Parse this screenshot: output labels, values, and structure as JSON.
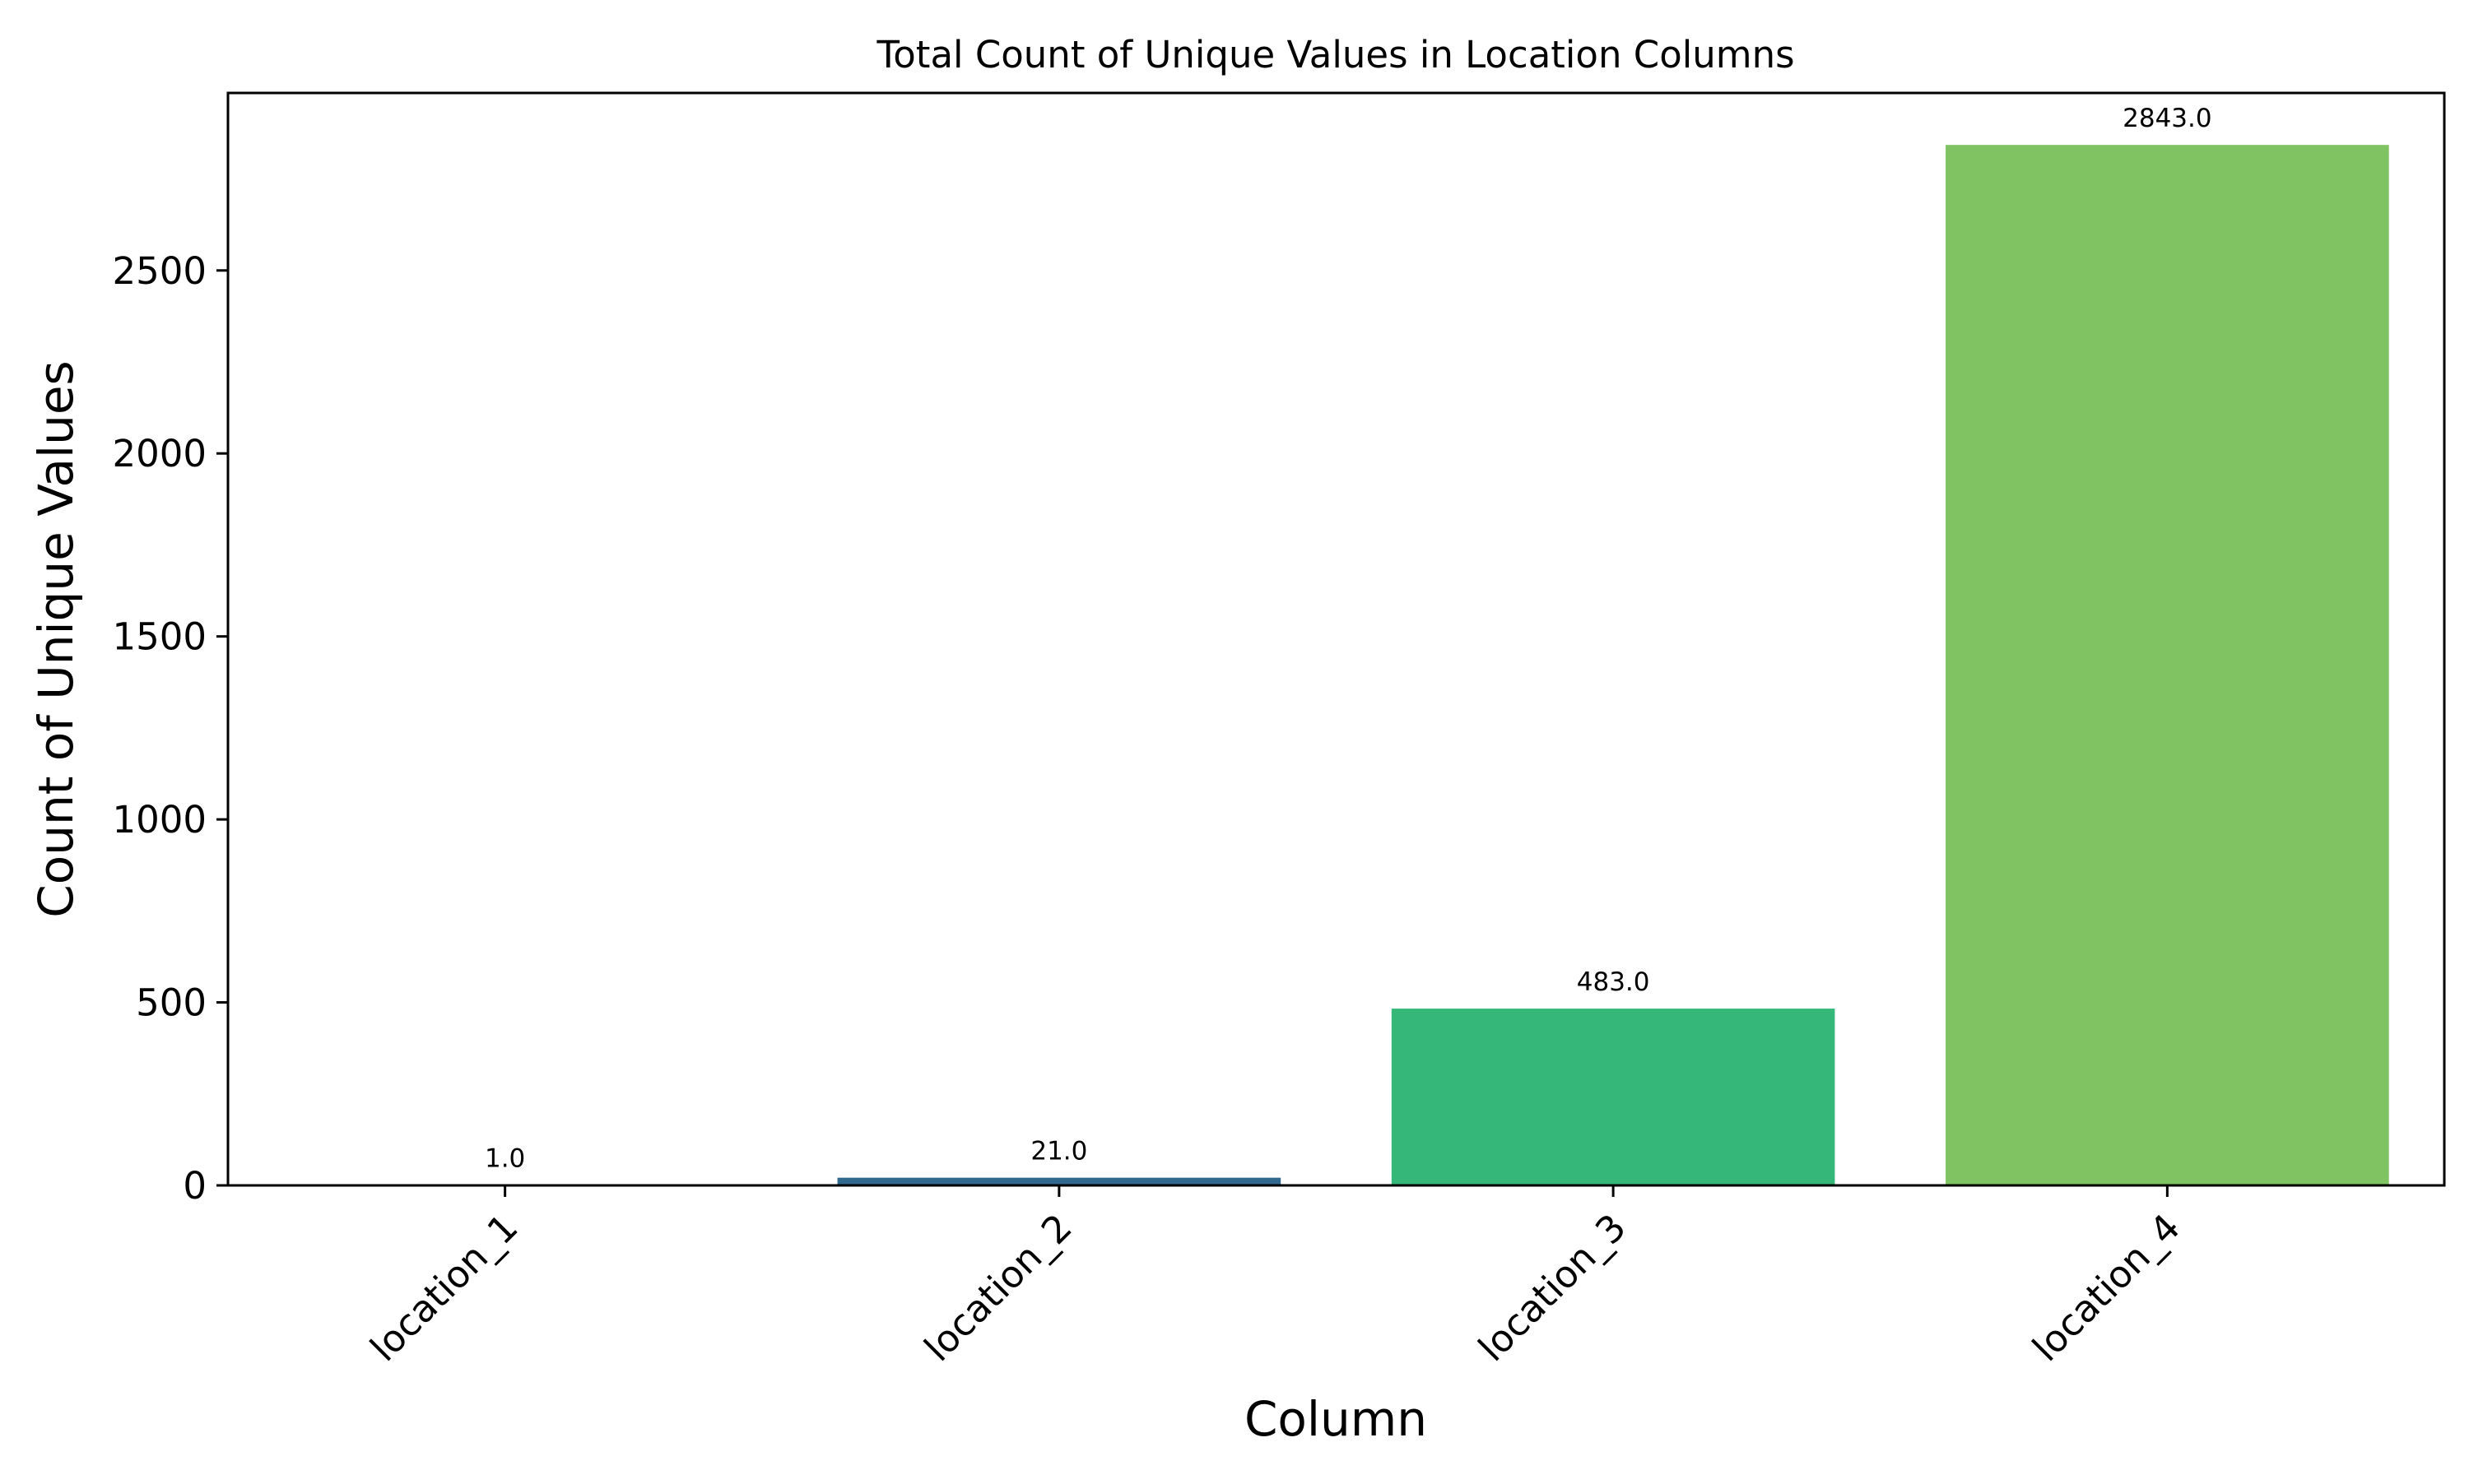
{
  "chart_data": {
    "type": "bar",
    "title": "Total Count of Unique Values in Location Columns",
    "xlabel": "Column",
    "ylabel": "Count of Unique Values",
    "categories": [
      "location_1",
      "location_2",
      "location_3",
      "location_4"
    ],
    "values": [
      1.0,
      21.0,
      483.0,
      2843.0
    ],
    "value_labels": [
      "1.0",
      "21.0",
      "483.0",
      "2843.0"
    ],
    "colors": [
      "#440154",
      "#31688e",
      "#35b779",
      "#7fc362"
    ],
    "ylim": [
      0,
      2985
    ],
    "yticks": [
      0,
      500,
      1000,
      1500,
      2000,
      2500
    ],
    "ytick_labels": [
      "0",
      "500",
      "1000",
      "1500",
      "2000",
      "2500"
    ],
    "grid": false,
    "legend": "none"
  }
}
